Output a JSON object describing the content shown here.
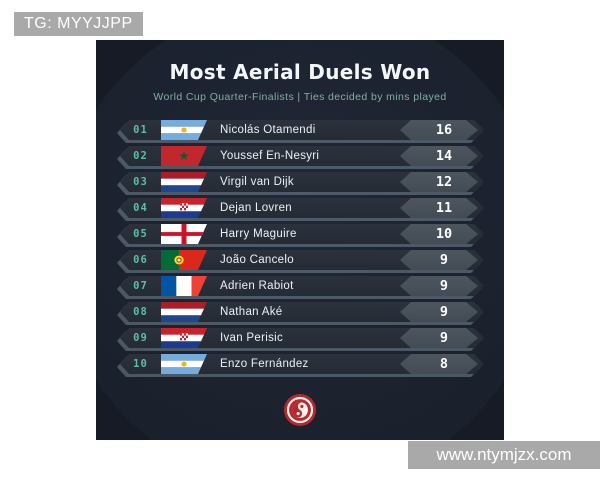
{
  "watermarks": {
    "top_left": "TG: MYYJJPP",
    "bottom_right": "www.ntymjzx.com"
  },
  "card": {
    "title": "Most Aerial Duels Won",
    "subtitle": "World Cup Quarter-Finalists | Ties decided by mins played",
    "colors": {
      "card_bg": "#161b25",
      "row_bg": "#272e38",
      "badge_bg": "#49515c",
      "accent_teal": "#5dbfa2",
      "logo_red": "#b7282e",
      "watermark_gray": "#a9a9a9"
    },
    "logo": "red-swirl-crest",
    "rows": [
      {
        "rank": "01",
        "flag": "argentina",
        "country": "Argentina",
        "name": "Nicolás Otamendi",
        "value": "16"
      },
      {
        "rank": "02",
        "flag": "morocco",
        "country": "Morocco",
        "name": "Youssef En-Nesyri",
        "value": "14"
      },
      {
        "rank": "03",
        "flag": "netherlands",
        "country": "Netherlands",
        "name": "Virgil van Dijk",
        "value": "12"
      },
      {
        "rank": "04",
        "flag": "croatia",
        "country": "Croatia",
        "name": "Dejan Lovren",
        "value": "11"
      },
      {
        "rank": "05",
        "flag": "england",
        "country": "England",
        "name": "Harry Maguire",
        "value": "10"
      },
      {
        "rank": "06",
        "flag": "portugal",
        "country": "Portugal",
        "name": "João Cancelo",
        "value": "9"
      },
      {
        "rank": "07",
        "flag": "france",
        "country": "France",
        "name": "Adrien Rabiot",
        "value": "9"
      },
      {
        "rank": "08",
        "flag": "netherlands",
        "country": "Netherlands",
        "name": "Nathan Aké",
        "value": "9"
      },
      {
        "rank": "09",
        "flag": "croatia",
        "country": "Croatia",
        "name": "Ivan Perisic",
        "value": "9"
      },
      {
        "rank": "10",
        "flag": "argentina",
        "country": "Argentina",
        "name": "Enzo Fernández",
        "value": "8"
      }
    ]
  },
  "chart_data": {
    "type": "table",
    "title": "Most Aerial Duels Won",
    "subtitle": "World Cup Quarter-Finalists | Ties decided by mins played",
    "columns": [
      "rank",
      "country",
      "player",
      "aerial_duels_won"
    ],
    "rows": [
      [
        1,
        "Argentina",
        "Nicolás Otamendi",
        16
      ],
      [
        2,
        "Morocco",
        "Youssef En-Nesyri",
        14
      ],
      [
        3,
        "Netherlands",
        "Virgil van Dijk",
        12
      ],
      [
        4,
        "Croatia",
        "Dejan Lovren",
        11
      ],
      [
        5,
        "England",
        "Harry Maguire",
        10
      ],
      [
        6,
        "Portugal",
        "João Cancelo",
        9
      ],
      [
        7,
        "France",
        "Adrien Rabiot",
        9
      ],
      [
        8,
        "Netherlands",
        "Nathan Aké",
        9
      ],
      [
        9,
        "Croatia",
        "Ivan Perisic",
        9
      ],
      [
        10,
        "Argentina",
        "Enzo Fernández",
        8
      ]
    ]
  }
}
